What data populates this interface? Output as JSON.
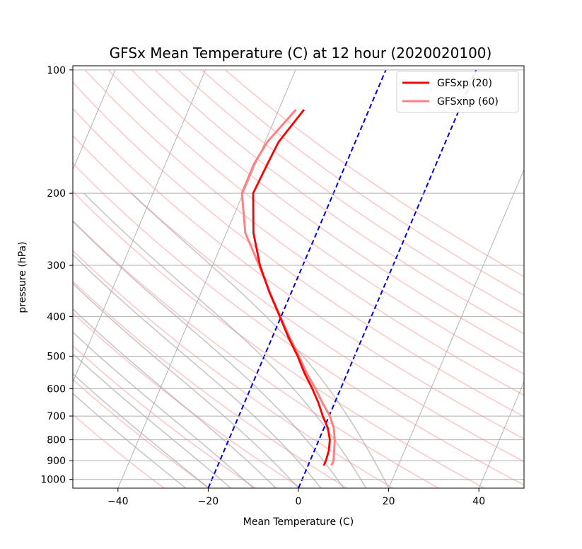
{
  "chart_data": {
    "type": "line",
    "title": "GFSx Mean Temperature (C) at 12 hour  (2020020100)",
    "xlabel": "Mean Temperature (C)",
    "ylabel": "pressure (hPa)",
    "xlim": [
      -50,
      50
    ],
    "ylim": [
      1050,
      100
    ],
    "y_scale": "log",
    "x_ticks": [
      -40,
      -20,
      0,
      20,
      40
    ],
    "x_tick_labels": [
      "−40",
      "−20",
      "0",
      "20",
      "40"
    ],
    "y_ticks": [
      1000,
      900,
      800,
      700,
      600,
      500,
      400,
      300,
      200,
      100
    ],
    "grid": true,
    "legend_position": "top-right",
    "colors": {
      "series_1": "#ff0000",
      "series_2": "#ff8080",
      "dry_adiabats": "#ff9a9a",
      "moist_adiabats": "#a0a0a8",
      "isotherms": "#aaaaaa",
      "highlight_isotherms": "#0000dd"
    },
    "series": [
      {
        "name": "GFSxp (20)",
        "pressure": [
          925,
          900,
          850,
          800,
          750,
          700,
          650,
          600,
          550,
          500,
          450,
          400,
          350,
          300,
          250,
          200,
          170,
          150,
          125
        ],
        "temperature": [
          3.5,
          3.5,
          3.2,
          2.4,
          0.9,
          -1.4,
          -3.6,
          -6.3,
          -9.5,
          -12.6,
          -16.4,
          -20.3,
          -24.8,
          -29.5,
          -34.0,
          -37.8,
          -37.4,
          -37.0,
          -34.4
        ]
      },
      {
        "name": "GFSxnp (60)",
        "pressure": [
          925,
          900,
          850,
          800,
          750,
          700,
          650,
          600,
          550,
          500,
          450,
          400,
          350,
          300,
          250,
          200,
          170,
          150,
          125
        ],
        "temperature": [
          5.2,
          5.2,
          4.4,
          3.5,
          2.2,
          0.2,
          -2.7,
          -5.6,
          -9.0,
          -12.3,
          -16.1,
          -20.2,
          -24.7,
          -29.7,
          -35.8,
          -40.3,
          -40.4,
          -39.5,
          -36.2
        ]
      }
    ],
    "highlight_isotherms_c": [
      -20,
      0
    ],
    "isotherms_c": [
      -100,
      -80,
      -60,
      -40,
      -20,
      0,
      20,
      40
    ],
    "dry_adiabats_k": [
      240,
      250,
      260,
      270,
      280,
      290,
      300,
      310,
      320,
      330,
      340,
      350,
      360,
      370,
      380,
      390,
      400,
      410,
      420
    ],
    "moist_adiabats_start_c": [
      -25,
      -20,
      -15,
      -10,
      -5,
      0,
      5,
      10,
      15,
      20
    ],
    "legend": [
      "GFSxp (20)",
      "GFSxnp (60)"
    ]
  }
}
